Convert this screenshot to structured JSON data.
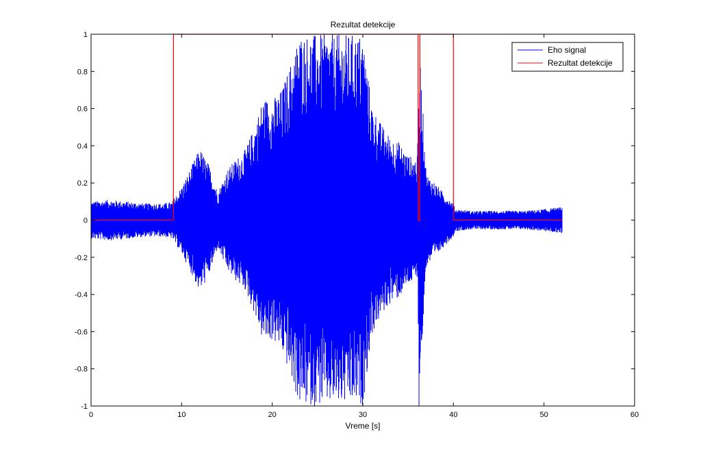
{
  "chart_data": {
    "type": "line",
    "title": "Rezultat detekcije",
    "xlabel": "Vreme [s]",
    "ylabel": "",
    "xlim": [
      0,
      60
    ],
    "ylim": [
      -1,
      1
    ],
    "xticks": [
      0,
      10,
      20,
      30,
      40,
      50,
      60
    ],
    "yticks": [
      -1,
      -0.8,
      -0.6,
      -0.4,
      -0.2,
      0,
      0.2,
      0.4,
      0.6,
      0.8,
      1
    ],
    "xtick_labels": [
      "0",
      "10",
      "20",
      "30",
      "40",
      "50",
      "60"
    ],
    "ytick_labels": [
      "-1",
      "-0.8",
      "-0.6",
      "-0.4",
      "-0.2",
      "0",
      "0.2",
      "0.4",
      "0.6",
      "0.8",
      "1"
    ],
    "grid": false,
    "legend_position": "top-right",
    "series": [
      {
        "name": "Eho signal",
        "color": "#0000ff",
        "kind": "dense-waveform",
        "duration": 52,
        "envelope": {
          "t": [
            0,
            2,
            4,
            6,
            8,
            9,
            9.2,
            10,
            11,
            12,
            13,
            14,
            15,
            16,
            17,
            18,
            19,
            20,
            21,
            22,
            23,
            23.5,
            24,
            25,
            26,
            27,
            28,
            29,
            30,
            31,
            32,
            33,
            34,
            35,
            36,
            36.3,
            37,
            38,
            39,
            40,
            40.2,
            42,
            45,
            48,
            50,
            52
          ],
          "amp": [
            0.1,
            0.11,
            0.1,
            0.09,
            0.09,
            0.1,
            0.12,
            0.18,
            0.28,
            0.39,
            0.3,
            0.15,
            0.27,
            0.33,
            0.38,
            0.5,
            0.66,
            0.65,
            0.7,
            0.84,
            1.0,
            1.0,
            1.0,
            1.0,
            1.0,
            1.0,
            1.0,
            1.0,
            1.0,
            0.62,
            0.52,
            0.45,
            0.42,
            0.35,
            0.33,
            0.9,
            0.25,
            0.2,
            0.14,
            0.09,
            0.06,
            0.05,
            0.05,
            0.05,
            0.06,
            0.07
          ]
        },
        "spikes": [
          {
            "t": 36.2,
            "y": -1.0
          }
        ]
      },
      {
        "name": "Rezultat detekcije",
        "color": "#ff0000",
        "kind": "step",
        "x": [
          0,
          9.1,
          9.1,
          36.1,
          36.1,
          36.3,
          36.3,
          40.0,
          40.0,
          52
        ],
        "y": [
          0,
          0,
          1,
          1,
          0,
          0,
          1,
          1,
          0,
          0
        ]
      }
    ]
  }
}
